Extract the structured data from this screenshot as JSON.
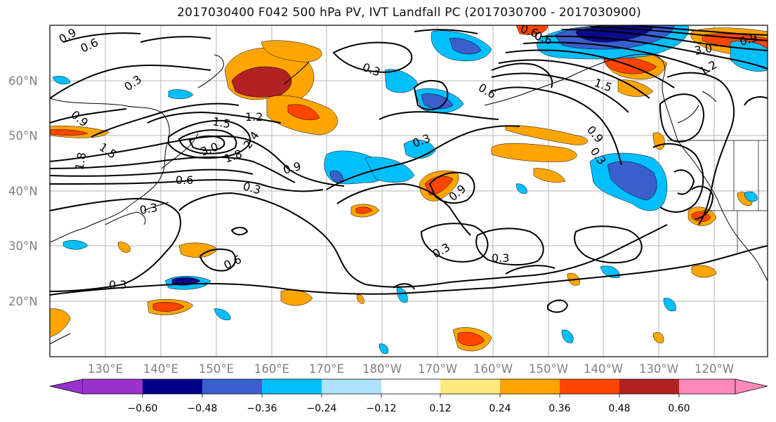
{
  "title": "2017030400 F042 500 hPa PV, IVT Landfall PC (2017030700 - 2017030900)",
  "map": {
    "lat_labels": [
      "60°N",
      "50°N",
      "40°N",
      "30°N",
      "20°N"
    ],
    "lon_labels": [
      "130°E",
      "140°E",
      "150°E",
      "160°E",
      "170°E",
      "180°W",
      "170°W",
      "160°W",
      "150°W",
      "140°W",
      "130°W",
      "120°W"
    ],
    "contour_labels": [
      "0.9",
      "0.6",
      "0.3",
      "0.9",
      "1.5",
      "1.2",
      "1.5",
      "3.0",
      "1.8",
      "2.4",
      "1.8",
      "0.6",
      "0.9",
      "0.3",
      "0.3",
      "0.3",
      "0.6",
      "0.3",
      "0.3",
      "0.3",
      "0.9",
      "0.6",
      "0.6",
      "0.9",
      "0.3",
      "1.5",
      "0.6",
      "1.2",
      "3.0",
      "0.3",
      "0.9"
    ],
    "land_color": "#ffffff",
    "positive_colors": [
      "#ffeb80",
      "#ffa500",
      "#ff4000",
      "#b22222"
    ],
    "negative_colors": [
      "#aadcff",
      "#00bfff",
      "#3357cc",
      "#0a0a8a"
    ]
  },
  "colorbar": {
    "ticks": [
      "−0.60",
      "−0.48",
      "−0.36",
      "−0.24",
      "−0.12",
      "0.12",
      "0.24",
      "0.36",
      "0.48",
      "0.60"
    ],
    "colors": [
      "#9932cc",
      "#00008b",
      "#3a5fcd",
      "#00bfff",
      "#b0e2ff",
      "#ffffff",
      "#ffea80",
      "#ffa500",
      "#ff4500",
      "#b22222",
      "#ff88bb"
    ]
  }
}
